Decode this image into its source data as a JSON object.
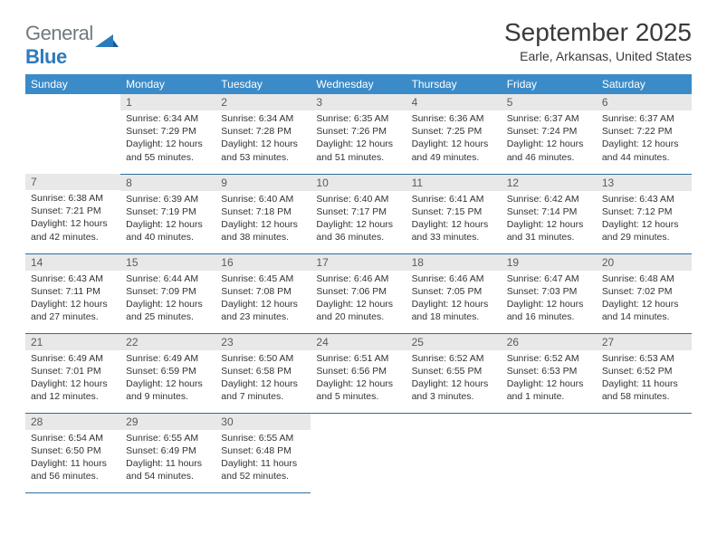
{
  "logo": {
    "text_gray": "General",
    "text_blue": "Blue"
  },
  "title": "September 2025",
  "location": "Earle, Arkansas, United States",
  "colors": {
    "header_bg": "#3b8bc8",
    "header_text": "#ffffff",
    "daynum_bg": "#e8e8e8",
    "daynum_text": "#5a5a5a",
    "body_text": "#333333",
    "row_border": "#2c6fa3",
    "logo_gray": "#6f7a7f",
    "logo_blue": "#2d7bbd",
    "title_color": "#3a3a3a",
    "page_bg": "#ffffff"
  },
  "day_headers": [
    "Sunday",
    "Monday",
    "Tuesday",
    "Wednesday",
    "Thursday",
    "Friday",
    "Saturday"
  ],
  "weeks": [
    [
      null,
      {
        "n": "1",
        "sunrise": "6:34 AM",
        "sunset": "7:29 PM",
        "daylight": "12 hours and 55 minutes."
      },
      {
        "n": "2",
        "sunrise": "6:34 AM",
        "sunset": "7:28 PM",
        "daylight": "12 hours and 53 minutes."
      },
      {
        "n": "3",
        "sunrise": "6:35 AM",
        "sunset": "7:26 PM",
        "daylight": "12 hours and 51 minutes."
      },
      {
        "n": "4",
        "sunrise": "6:36 AM",
        "sunset": "7:25 PM",
        "daylight": "12 hours and 49 minutes."
      },
      {
        "n": "5",
        "sunrise": "6:37 AM",
        "sunset": "7:24 PM",
        "daylight": "12 hours and 46 minutes."
      },
      {
        "n": "6",
        "sunrise": "6:37 AM",
        "sunset": "7:22 PM",
        "daylight": "12 hours and 44 minutes."
      }
    ],
    [
      {
        "n": "7",
        "sunrise": "6:38 AM",
        "sunset": "7:21 PM",
        "daylight": "12 hours and 42 minutes."
      },
      {
        "n": "8",
        "sunrise": "6:39 AM",
        "sunset": "7:19 PM",
        "daylight": "12 hours and 40 minutes."
      },
      {
        "n": "9",
        "sunrise": "6:40 AM",
        "sunset": "7:18 PM",
        "daylight": "12 hours and 38 minutes."
      },
      {
        "n": "10",
        "sunrise": "6:40 AM",
        "sunset": "7:17 PM",
        "daylight": "12 hours and 36 minutes."
      },
      {
        "n": "11",
        "sunrise": "6:41 AM",
        "sunset": "7:15 PM",
        "daylight": "12 hours and 33 minutes."
      },
      {
        "n": "12",
        "sunrise": "6:42 AM",
        "sunset": "7:14 PM",
        "daylight": "12 hours and 31 minutes."
      },
      {
        "n": "13",
        "sunrise": "6:43 AM",
        "sunset": "7:12 PM",
        "daylight": "12 hours and 29 minutes."
      }
    ],
    [
      {
        "n": "14",
        "sunrise": "6:43 AM",
        "sunset": "7:11 PM",
        "daylight": "12 hours and 27 minutes."
      },
      {
        "n": "15",
        "sunrise": "6:44 AM",
        "sunset": "7:09 PM",
        "daylight": "12 hours and 25 minutes."
      },
      {
        "n": "16",
        "sunrise": "6:45 AM",
        "sunset": "7:08 PM",
        "daylight": "12 hours and 23 minutes."
      },
      {
        "n": "17",
        "sunrise": "6:46 AM",
        "sunset": "7:06 PM",
        "daylight": "12 hours and 20 minutes."
      },
      {
        "n": "18",
        "sunrise": "6:46 AM",
        "sunset": "7:05 PM",
        "daylight": "12 hours and 18 minutes."
      },
      {
        "n": "19",
        "sunrise": "6:47 AM",
        "sunset": "7:03 PM",
        "daylight": "12 hours and 16 minutes."
      },
      {
        "n": "20",
        "sunrise": "6:48 AM",
        "sunset": "7:02 PM",
        "daylight": "12 hours and 14 minutes."
      }
    ],
    [
      {
        "n": "21",
        "sunrise": "6:49 AM",
        "sunset": "7:01 PM",
        "daylight": "12 hours and 12 minutes."
      },
      {
        "n": "22",
        "sunrise": "6:49 AM",
        "sunset": "6:59 PM",
        "daylight": "12 hours and 9 minutes."
      },
      {
        "n": "23",
        "sunrise": "6:50 AM",
        "sunset": "6:58 PM",
        "daylight": "12 hours and 7 minutes."
      },
      {
        "n": "24",
        "sunrise": "6:51 AM",
        "sunset": "6:56 PM",
        "daylight": "12 hours and 5 minutes."
      },
      {
        "n": "25",
        "sunrise": "6:52 AM",
        "sunset": "6:55 PM",
        "daylight": "12 hours and 3 minutes."
      },
      {
        "n": "26",
        "sunrise": "6:52 AM",
        "sunset": "6:53 PM",
        "daylight": "12 hours and 1 minute."
      },
      {
        "n": "27",
        "sunrise": "6:53 AM",
        "sunset": "6:52 PM",
        "daylight": "11 hours and 58 minutes."
      }
    ],
    [
      {
        "n": "28",
        "sunrise": "6:54 AM",
        "sunset": "6:50 PM",
        "daylight": "11 hours and 56 minutes."
      },
      {
        "n": "29",
        "sunrise": "6:55 AM",
        "sunset": "6:49 PM",
        "daylight": "11 hours and 54 minutes."
      },
      {
        "n": "30",
        "sunrise": "6:55 AM",
        "sunset": "6:48 PM",
        "daylight": "11 hours and 52 minutes."
      },
      null,
      null,
      null,
      null
    ]
  ],
  "labels": {
    "sunrise_prefix": "Sunrise: ",
    "sunset_prefix": "Sunset: ",
    "daylight_prefix": "Daylight: "
  }
}
